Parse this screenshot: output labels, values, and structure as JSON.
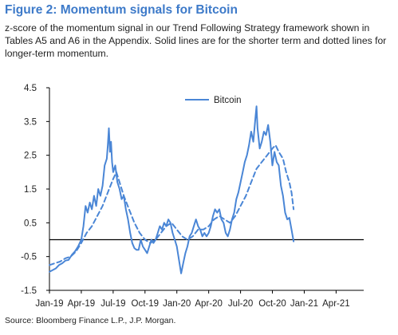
{
  "figure": {
    "title": "Figure 2: Momentum signals for Bitcoin",
    "subtitle": "z-score of the momentum signal in our Trend Following Strategy framework shown in Tables A5 and A6 in the Appendix. Solid lines are for the shorter term and dotted lines for longer-term momentum.",
    "source": "Source: Bloomberg Finance L.P., J.P. Morgan."
  },
  "colors": {
    "series": "#4a86d6",
    "axis": "#000000"
  },
  "chart_data": {
    "type": "line",
    "title": "Figure 2: Momentum signals for Bitcoin",
    "xlabel": "",
    "ylabel": "",
    "ylim": [
      -1.5,
      4.5
    ],
    "y_ticks": [
      "4.5",
      "3.5",
      "2.5",
      "1.5",
      "0.5",
      "-0.5",
      "-1.5"
    ],
    "x_ticks": [
      "Jan-19",
      "Apr-19",
      "Jul-19",
      "Oct-19",
      "Jan-20",
      "Apr-20",
      "Jul-20",
      "Oct-20",
      "Jan-21",
      "Apr-21"
    ],
    "grid": false,
    "legend": {
      "position": "top-center",
      "entries": [
        "Bitcoin"
      ]
    },
    "x_unit": "months since Jan-19",
    "series": [
      {
        "name": "Bitcoin",
        "style": "solid",
        "points": [
          [
            0.0,
            -0.95
          ],
          [
            0.3,
            -0.9
          ],
          [
            0.6,
            -0.85
          ],
          [
            0.9,
            -0.75
          ],
          [
            1.2,
            -0.7
          ],
          [
            1.5,
            -0.62
          ],
          [
            1.8,
            -0.6
          ],
          [
            2.1,
            -0.45
          ],
          [
            2.4,
            -0.35
          ],
          [
            2.7,
            -0.2
          ],
          [
            3.0,
            0.0
          ],
          [
            3.2,
            0.4
          ],
          [
            3.4,
            1.0
          ],
          [
            3.6,
            0.8
          ],
          [
            3.8,
            1.1
          ],
          [
            4.0,
            0.9
          ],
          [
            4.2,
            1.3
          ],
          [
            4.4,
            1.0
          ],
          [
            4.6,
            1.5
          ],
          [
            4.8,
            1.3
          ],
          [
            5.0,
            1.6
          ],
          [
            5.2,
            2.2
          ],
          [
            5.4,
            2.4
          ],
          [
            5.5,
            2.8
          ],
          [
            5.6,
            3.3
          ],
          [
            5.7,
            2.6
          ],
          [
            5.8,
            2.9
          ],
          [
            5.9,
            2.3
          ],
          [
            6.0,
            2.0
          ],
          [
            6.2,
            2.2
          ],
          [
            6.4,
            1.7
          ],
          [
            6.6,
            1.5
          ],
          [
            6.8,
            1.2
          ],
          [
            7.0,
            1.3
          ],
          [
            7.2,
            0.9
          ],
          [
            7.4,
            0.6
          ],
          [
            7.6,
            0.2
          ],
          [
            7.8,
            -0.1
          ],
          [
            8.0,
            -0.25
          ],
          [
            8.2,
            -0.3
          ],
          [
            8.4,
            -0.3
          ],
          [
            8.6,
            0.0
          ],
          [
            8.8,
            -0.2
          ],
          [
            9.0,
            -0.3
          ],
          [
            9.2,
            -0.4
          ],
          [
            9.4,
            -0.2
          ],
          [
            9.6,
            0.0
          ],
          [
            9.8,
            -0.1
          ],
          [
            10.0,
            0.0
          ],
          [
            10.2,
            0.2
          ],
          [
            10.4,
            0.4
          ],
          [
            10.6,
            0.3
          ],
          [
            10.8,
            0.5
          ],
          [
            11.0,
            0.4
          ],
          [
            11.2,
            0.6
          ],
          [
            11.4,
            0.5
          ],
          [
            11.6,
            0.2
          ],
          [
            11.8,
            0.0
          ],
          [
            12.0,
            -0.2
          ],
          [
            12.2,
            -0.6
          ],
          [
            12.4,
            -1.0
          ],
          [
            12.6,
            -0.7
          ],
          [
            12.8,
            -0.4
          ],
          [
            13.0,
            -0.2
          ],
          [
            13.2,
            0.1
          ],
          [
            13.4,
            0.2
          ],
          [
            13.6,
            0.4
          ],
          [
            13.8,
            0.6
          ],
          [
            14.0,
            0.4
          ],
          [
            14.2,
            0.3
          ],
          [
            14.4,
            0.1
          ],
          [
            14.6,
            0.2
          ],
          [
            14.8,
            0.1
          ],
          [
            15.0,
            0.2
          ],
          [
            15.2,
            0.4
          ],
          [
            15.4,
            0.7
          ],
          [
            15.6,
            0.9
          ],
          [
            15.8,
            0.8
          ],
          [
            16.0,
            0.9
          ],
          [
            16.2,
            0.6
          ],
          [
            16.4,
            0.5
          ],
          [
            16.6,
            0.2
          ],
          [
            16.8,
            0.1
          ],
          [
            17.0,
            0.3
          ],
          [
            17.2,
            0.6
          ],
          [
            17.4,
            0.8
          ],
          [
            17.6,
            1.2
          ],
          [
            17.8,
            1.4
          ],
          [
            18.0,
            1.7
          ],
          [
            18.2,
            2.0
          ],
          [
            18.4,
            2.3
          ],
          [
            18.6,
            2.5
          ],
          [
            18.8,
            2.8
          ],
          [
            19.0,
            3.2
          ],
          [
            19.2,
            2.9
          ],
          [
            19.4,
            3.6
          ],
          [
            19.5,
            3.95
          ],
          [
            19.6,
            3.3
          ],
          [
            19.8,
            2.7
          ],
          [
            20.0,
            2.9
          ],
          [
            20.2,
            3.2
          ],
          [
            20.4,
            3.1
          ],
          [
            20.6,
            3.4
          ],
          [
            20.8,
            2.9
          ],
          [
            21.0,
            2.2
          ],
          [
            21.2,
            2.6
          ],
          [
            21.4,
            2.3
          ],
          [
            21.6,
            2.2
          ],
          [
            21.8,
            1.6
          ],
          [
            22.0,
            1.3
          ],
          [
            22.2,
            0.8
          ],
          [
            22.4,
            0.6
          ],
          [
            22.6,
            0.65
          ],
          [
            22.8,
            0.3
          ],
          [
            23.0,
            -0.05
          ]
        ]
      },
      {
        "name": "Bitcoin",
        "style": "dotted",
        "points": [
          [
            0.0,
            -0.75
          ],
          [
            0.5,
            -0.7
          ],
          [
            1.0,
            -0.65
          ],
          [
            1.5,
            -0.55
          ],
          [
            2.0,
            -0.5
          ],
          [
            2.5,
            -0.35
          ],
          [
            3.0,
            -0.1
          ],
          [
            3.5,
            0.2
          ],
          [
            4.0,
            0.4
          ],
          [
            4.5,
            0.7
          ],
          [
            5.0,
            1.0
          ],
          [
            5.5,
            1.4
          ],
          [
            6.0,
            1.8
          ],
          [
            6.3,
            2.0
          ],
          [
            6.6,
            1.7
          ],
          [
            7.0,
            1.3
          ],
          [
            7.5,
            0.9
          ],
          [
            8.0,
            0.5
          ],
          [
            8.5,
            0.2
          ],
          [
            9.0,
            0.0
          ],
          [
            9.5,
            -0.1
          ],
          [
            10.0,
            0.0
          ],
          [
            10.5,
            0.2
          ],
          [
            11.0,
            0.4
          ],
          [
            11.5,
            0.5
          ],
          [
            12.0,
            0.3
          ],
          [
            12.5,
            0.1
          ],
          [
            13.0,
            0.0
          ],
          [
            13.5,
            0.1
          ],
          [
            14.0,
            0.3
          ],
          [
            14.5,
            0.3
          ],
          [
            15.0,
            0.4
          ],
          [
            15.5,
            0.6
          ],
          [
            16.0,
            0.7
          ],
          [
            16.5,
            0.6
          ],
          [
            17.0,
            0.5
          ],
          [
            17.5,
            0.7
          ],
          [
            18.0,
            1.0
          ],
          [
            18.5,
            1.3
          ],
          [
            19.0,
            1.7
          ],
          [
            19.5,
            2.1
          ],
          [
            20.0,
            2.3
          ],
          [
            20.5,
            2.5
          ],
          [
            21.0,
            2.7
          ],
          [
            21.3,
            2.8
          ],
          [
            21.6,
            2.6
          ],
          [
            22.0,
            2.4
          ],
          [
            22.3,
            2.0
          ],
          [
            22.6,
            1.7
          ],
          [
            22.8,
            1.4
          ],
          [
            23.0,
            0.9
          ]
        ]
      }
    ]
  }
}
